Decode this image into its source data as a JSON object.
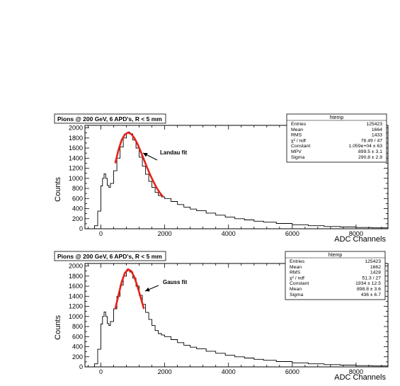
{
  "chart_data": [
    {
      "type": "histogram",
      "title": "Pions @ 200 GeV, 6 APD's, R < 5 mm",
      "xlabel": "ADC Channels",
      "ylabel": "Counts",
      "xlim": [
        -500,
        9000
      ],
      "ylim": [
        0,
        2050
      ],
      "xticks": [
        "0",
        "2000",
        "4000",
        "6000",
        "8000"
      ],
      "yticks": [
        "0",
        "200",
        "400",
        "600",
        "800",
        "1000",
        "1200",
        "1400",
        "1600",
        "1800",
        "2000"
      ],
      "histogram": {
        "x": [
          -300,
          -200,
          -100,
          0,
          50,
          100,
          150,
          200,
          250,
          300,
          400,
          500,
          600,
          700,
          800,
          850,
          900,
          1000,
          1100,
          1200,
          1300,
          1400,
          1500,
          1600,
          1700,
          1800,
          1900,
          2000,
          2200,
          2400,
          2600,
          2800,
          3000,
          3300,
          3600,
          3900,
          4200,
          4500,
          4800,
          5100,
          5500,
          6000,
          6500,
          7000,
          7500,
          8000,
          8500,
          9000
        ],
        "y": [
          0,
          60,
          350,
          850,
          1000,
          1090,
          1000,
          860,
          820,
          900,
          1150,
          1400,
          1620,
          1800,
          1900,
          1920,
          1880,
          1760,
          1600,
          1420,
          1240,
          1080,
          940,
          820,
          720,
          660,
          630,
          600,
          540,
          480,
          430,
          390,
          360,
          310,
          270,
          230,
          200,
          175,
          150,
          130,
          105,
          80,
          60,
          45,
          35,
          25,
          18,
          12
        ]
      },
      "fit": {
        "name": "Landau fit",
        "x": [
          450,
          550,
          650,
          750,
          850,
          950,
          1050,
          1150,
          1250,
          1350,
          1450,
          1550,
          1650,
          1750,
          1850,
          1950
        ],
        "y": [
          1300,
          1560,
          1760,
          1870,
          1905,
          1880,
          1800,
          1680,
          1530,
          1370,
          1210,
          1060,
          930,
          810,
          710,
          630
        ]
      },
      "annotation": "Landau fit",
      "stats": {
        "header": "htemp",
        "rows": [
          [
            "Entries",
            "125423"
          ],
          [
            "Mean",
            "1664"
          ],
          [
            "RMS",
            "1433"
          ],
          [
            "χ² / ndf",
            "78.49 / 47"
          ],
          [
            "Constant",
            "1.059e+04 ± 63"
          ],
          [
            "MPV",
            "899.5 ± 3.1"
          ],
          [
            "Sigma",
            "290.8 ± 2.9"
          ]
        ]
      }
    },
    {
      "type": "histogram",
      "title": "Pions @ 200 GeV, 6 APD's, R < 5 mm",
      "xlabel": "ADC Channels",
      "ylabel": "Counts",
      "xlim": [
        -500,
        9000
      ],
      "ylim": [
        0,
        2050
      ],
      "xticks": [
        "0",
        "2000",
        "4000",
        "6000",
        "8000"
      ],
      "yticks": [
        "0",
        "200",
        "400",
        "600",
        "800",
        "1000",
        "1200",
        "1400",
        "1600",
        "1800",
        "2000"
      ],
      "histogram": {
        "x": [
          -300,
          -200,
          -100,
          0,
          50,
          100,
          150,
          200,
          250,
          300,
          400,
          500,
          600,
          700,
          800,
          850,
          900,
          1000,
          1100,
          1200,
          1300,
          1400,
          1500,
          1600,
          1700,
          1800,
          1900,
          2000,
          2200,
          2400,
          2600,
          2800,
          3000,
          3300,
          3600,
          3900,
          4200,
          4500,
          4800,
          5100,
          5500,
          6000,
          6500,
          7000,
          7500,
          8000,
          8500,
          9000
        ],
        "y": [
          0,
          60,
          350,
          850,
          1000,
          1090,
          1000,
          860,
          820,
          900,
          1150,
          1400,
          1620,
          1800,
          1900,
          1920,
          1880,
          1760,
          1600,
          1420,
          1240,
          1080,
          940,
          820,
          720,
          660,
          630,
          600,
          540,
          480,
          430,
          390,
          360,
          310,
          270,
          230,
          200,
          175,
          150,
          130,
          105,
          80,
          60,
          45,
          35,
          25,
          18,
          12
        ]
      },
      "fit": {
        "name": "Gauss fit",
        "x": [
          450,
          550,
          650,
          750,
          850,
          950,
          1050,
          1150,
          1250,
          1350
        ],
        "y": [
          1150,
          1420,
          1680,
          1860,
          1935,
          1900,
          1780,
          1590,
          1370,
          1150
        ]
      },
      "annotation": "Gauss fit",
      "stats": {
        "header": "htemp",
        "rows": [
          [
            "Entries",
            "125423"
          ],
          [
            "Mean",
            "1662"
          ],
          [
            "RMS",
            "1428"
          ],
          [
            "χ² / ndf",
            "51.3 / 27"
          ],
          [
            "Constant",
            "1934 ± 12.5"
          ],
          [
            "Mean",
            "898.8 ± 3.6"
          ],
          [
            "Sigma",
            "436 ± 6.7"
          ]
        ]
      }
    }
  ]
}
